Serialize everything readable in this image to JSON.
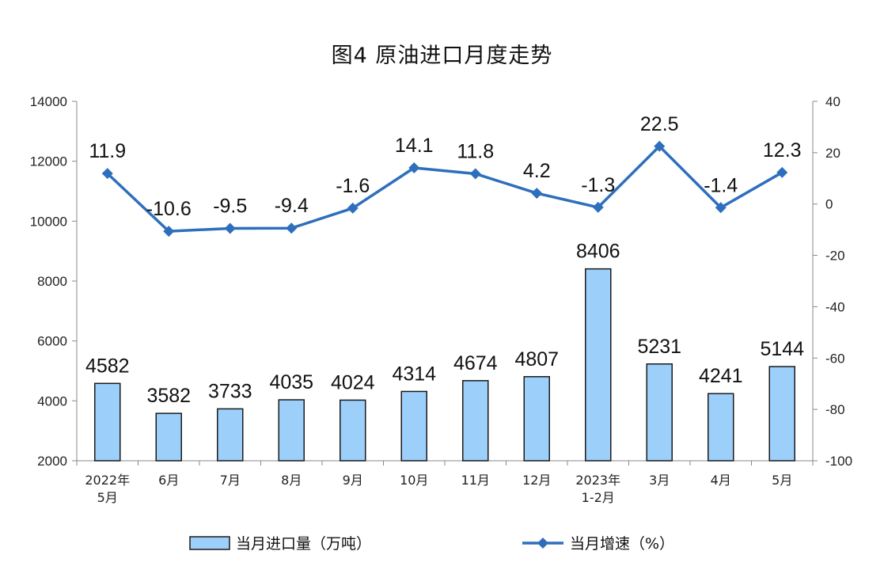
{
  "title": "图4  原油进口月度走势",
  "chart_data": {
    "type": "bar+line",
    "categories": [
      "2022年\n5月",
      "6月",
      "7月",
      "8月",
      "9月",
      "10月",
      "11月",
      "12月",
      "2023年\n1-2月",
      "3月",
      "4月",
      "5月"
    ],
    "series": [
      {
        "name": "当月进口量（万吨）",
        "type": "bar",
        "axis": "left",
        "color": "#9ccffa",
        "values": [
          4582,
          3582,
          3733,
          4035,
          4024,
          4314,
          4674,
          4807,
          8406,
          5231,
          4241,
          5144
        ],
        "labels": [
          "4582",
          "3582",
          "3733",
          "4035",
          "4024",
          "4314",
          "4674",
          "4807",
          "8406",
          "5231",
          "4241",
          "5144"
        ]
      },
      {
        "name": "当月增速（%）",
        "type": "line",
        "axis": "right",
        "color": "#2e6fbd",
        "values": [
          11.9,
          -10.6,
          -9.5,
          -9.4,
          -1.6,
          14.1,
          11.8,
          4.2,
          -1.3,
          22.5,
          -1.4,
          12.3
        ],
        "labels": [
          "11.9",
          "-10.6",
          "-9.5",
          "-9.4",
          "-1.6",
          "14.1",
          "11.8",
          "4.2",
          "-1.3",
          "22.5",
          "-1.4",
          "12.3"
        ]
      }
    ],
    "y_left": {
      "min": 2000,
      "max": 14000,
      "ticks": [
        "2000",
        "4000",
        "6000",
        "8000",
        "10000",
        "12000",
        "14000"
      ]
    },
    "y_right": {
      "min": -100,
      "max": 40,
      "ticks": [
        "-100",
        "-80",
        "-60",
        "-40",
        "-20",
        "0",
        "20",
        "40"
      ]
    },
    "grid": false,
    "legend_position": "bottom"
  }
}
